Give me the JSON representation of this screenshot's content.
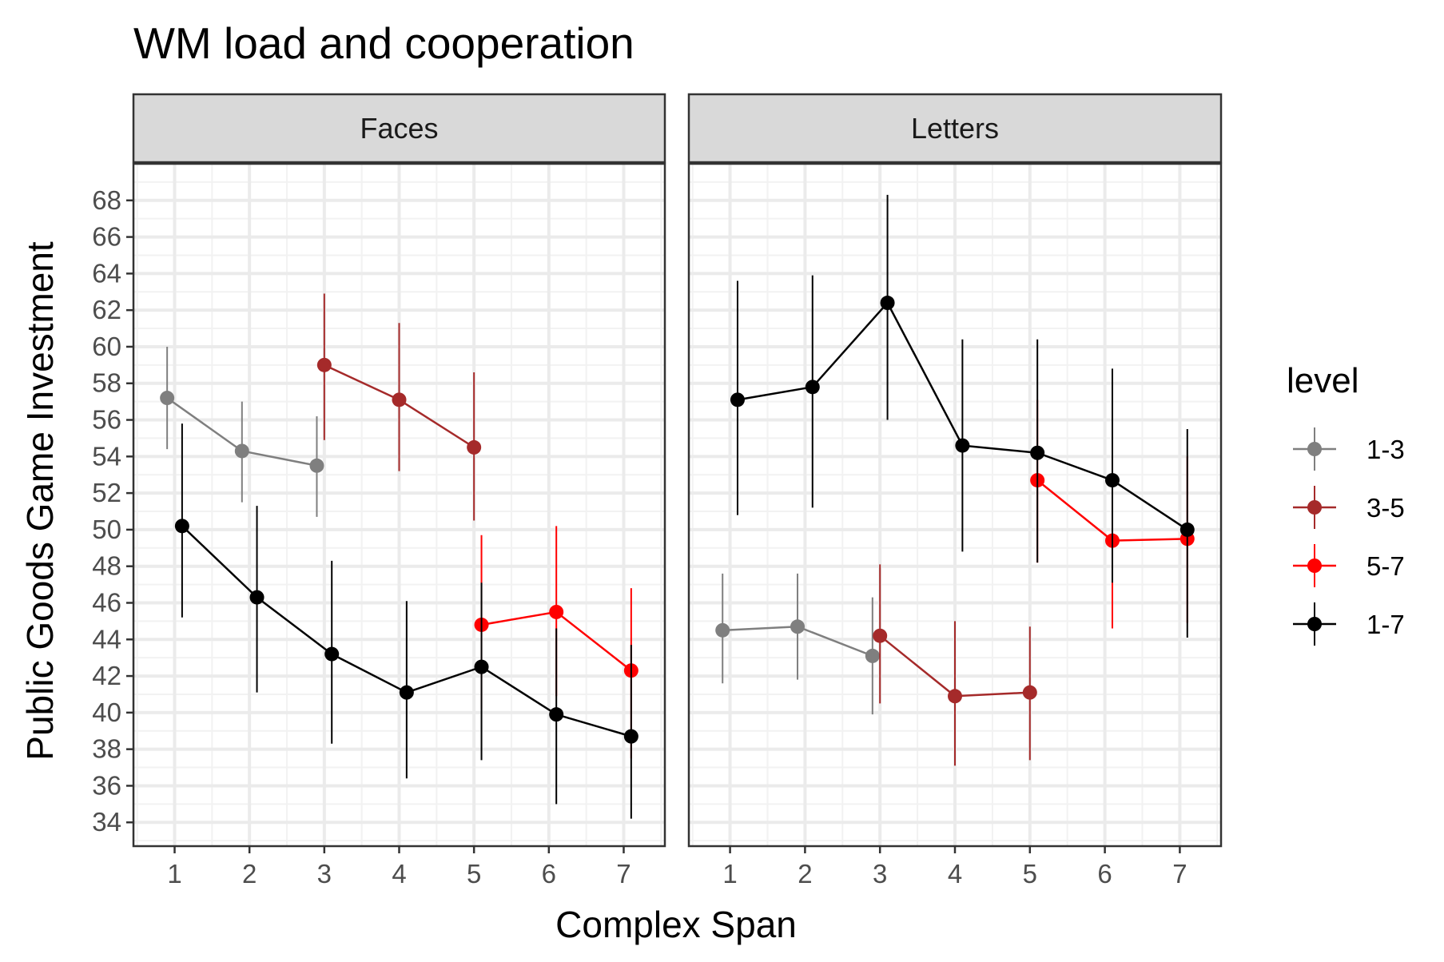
{
  "chart_data": {
    "type": "line",
    "title": "WM load and cooperation",
    "xlabel": "Complex Span",
    "ylabel": "Public Goods Game Investment",
    "x_ticks": [
      1,
      2,
      3,
      4,
      5,
      6,
      7
    ],
    "y_ticks": [
      34,
      36,
      38,
      40,
      42,
      44,
      46,
      48,
      50,
      52,
      54,
      56,
      58,
      60,
      62,
      64,
      66,
      68
    ],
    "xlim": [
      0.45,
      7.55
    ],
    "ylim": [
      32.7,
      70
    ],
    "grid": true,
    "error_bars": true,
    "legend": {
      "title": "level",
      "position": "right",
      "entries": [
        {
          "label": "1-3",
          "color": "#7f7f7f"
        },
        {
          "label": "3-5",
          "color": "#a52a2a"
        },
        {
          "label": "5-7",
          "color": "#ff0000"
        },
        {
          "label": "1-7",
          "color": "#000000"
        }
      ]
    },
    "panels": [
      {
        "label": "Faces",
        "series": [
          {
            "name": "1-3",
            "color": "#7f7f7f",
            "points": [
              {
                "x": 1,
                "y": 57.2,
                "ymin": 54.4,
                "ymax": 60.0
              },
              {
                "x": 2,
                "y": 54.3,
                "ymin": 51.5,
                "ymax": 57.0
              },
              {
                "x": 3,
                "y": 53.5,
                "ymin": 50.7,
                "ymax": 56.2
              }
            ]
          },
          {
            "name": "3-5",
            "color": "#a52a2a",
            "points": [
              {
                "x": 3,
                "y": 59.0,
                "ymin": 54.9,
                "ymax": 62.9
              },
              {
                "x": 4,
                "y": 57.1,
                "ymin": 53.2,
                "ymax": 61.3
              },
              {
                "x": 5,
                "y": 54.5,
                "ymin": 50.5,
                "ymax": 58.6
              }
            ]
          },
          {
            "name": "5-7",
            "color": "#ff0000",
            "points": [
              {
                "x": 5,
                "y": 44.8,
                "ymin": 40.2,
                "ymax": 49.7
              },
              {
                "x": 6,
                "y": 45.5,
                "ymin": 40.9,
                "ymax": 50.2
              },
              {
                "x": 7,
                "y": 42.3,
                "ymin": 37.5,
                "ymax": 46.8
              }
            ]
          },
          {
            "name": "1-7",
            "color": "#000000",
            "points": [
              {
                "x": 1,
                "y": 50.2,
                "ymin": 45.2,
                "ymax": 55.8
              },
              {
                "x": 2,
                "y": 46.3,
                "ymin": 41.1,
                "ymax": 51.3
              },
              {
                "x": 3,
                "y": 43.2,
                "ymin": 38.3,
                "ymax": 48.3
              },
              {
                "x": 4,
                "y": 41.1,
                "ymin": 36.4,
                "ymax": 46.1
              },
              {
                "x": 5,
                "y": 42.5,
                "ymin": 37.4,
                "ymax": 47.1
              },
              {
                "x": 6,
                "y": 39.9,
                "ymin": 35.0,
                "ymax": 44.6
              },
              {
                "x": 7,
                "y": 38.7,
                "ymin": 34.2,
                "ymax": 43.7
              }
            ]
          }
        ]
      },
      {
        "label": "Letters",
        "series": [
          {
            "name": "1-3",
            "color": "#7f7f7f",
            "points": [
              {
                "x": 1,
                "y": 44.5,
                "ymin": 41.6,
                "ymax": 47.6
              },
              {
                "x": 2,
                "y": 44.7,
                "ymin": 41.8,
                "ymax": 47.6
              },
              {
                "x": 3,
                "y": 43.1,
                "ymin": 39.9,
                "ymax": 46.3
              }
            ]
          },
          {
            "name": "3-5",
            "color": "#a52a2a",
            "points": [
              {
                "x": 3,
                "y": 44.2,
                "ymin": 40.5,
                "ymax": 48.1
              },
              {
                "x": 4,
                "y": 40.9,
                "ymin": 37.1,
                "ymax": 45.0
              },
              {
                "x": 5,
                "y": 41.1,
                "ymin": 37.4,
                "ymax": 44.7
              }
            ]
          },
          {
            "name": "5-7",
            "color": "#ff0000",
            "points": [
              {
                "x": 5,
                "y": 52.7,
                "ymin": 48.2,
                "ymax": 57.1
              },
              {
                "x": 6,
                "y": 49.4,
                "ymin": 44.6,
                "ymax": 54.0
              },
              {
                "x": 7,
                "y": 49.5,
                "ymin": 44.9,
                "ymax": 54.0
              }
            ]
          },
          {
            "name": "1-7",
            "color": "#000000",
            "points": [
              {
                "x": 1,
                "y": 57.1,
                "ymin": 50.8,
                "ymax": 63.6
              },
              {
                "x": 2,
                "y": 57.8,
                "ymin": 51.2,
                "ymax": 63.9
              },
              {
                "x": 3,
                "y": 62.4,
                "ymin": 56.0,
                "ymax": 68.3
              },
              {
                "x": 4,
                "y": 54.6,
                "ymin": 48.8,
                "ymax": 60.4
              },
              {
                "x": 5,
                "y": 54.2,
                "ymin": 48.2,
                "ymax": 60.4
              },
              {
                "x": 6,
                "y": 52.7,
                "ymin": 47.1,
                "ymax": 58.8
              },
              {
                "x": 7,
                "y": 50.0,
                "ymin": 44.1,
                "ymax": 55.5
              }
            ]
          }
        ]
      }
    ]
  }
}
